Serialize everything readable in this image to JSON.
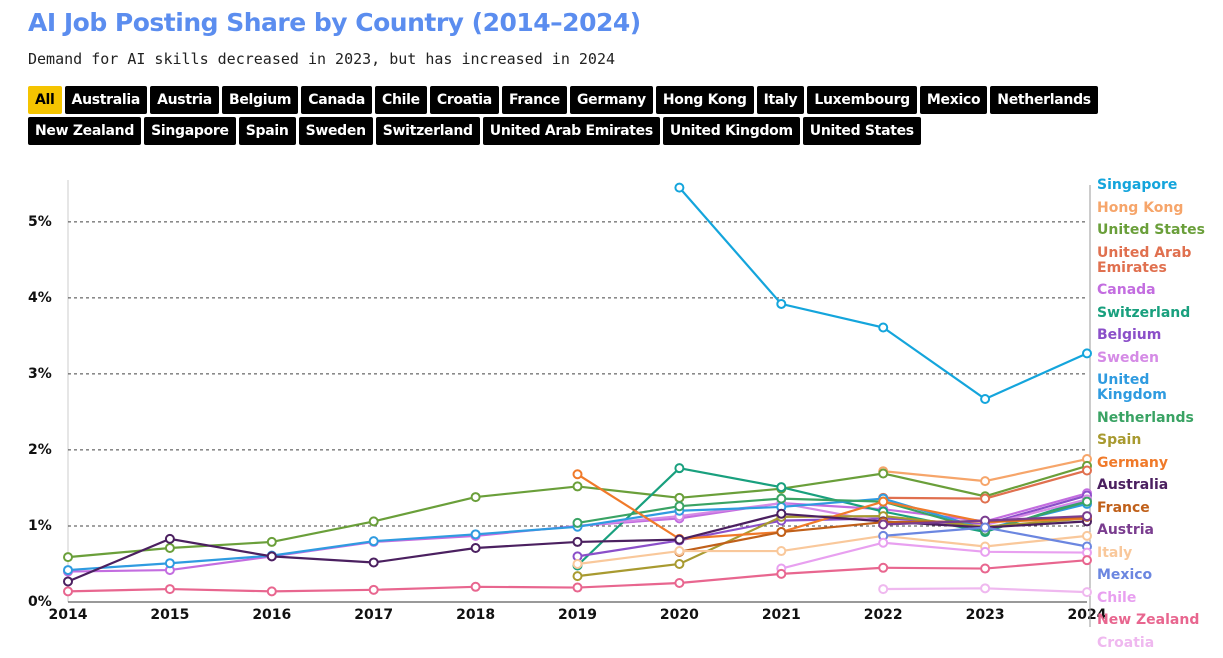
{
  "filters": [
    "All",
    "Australia",
    "Austria",
    "Belgium",
    "Canada",
    "Chile",
    "Croatia",
    "France",
    "Germany",
    "Hong Kong",
    "Italy",
    "Luxembourg",
    "Mexico",
    "Netherlands",
    "New Zealand",
    "Singapore",
    "Spain",
    "Sweden",
    "Switzerland",
    "United Arab Emirates",
    "United Kingdom",
    "United States"
  ],
  "chart_data": {
    "type": "line",
    "title": "AI Job Posting Share by Country (2014–2024)",
    "subtitle": "Demand for AI skills decreased in 2023, but has increased in 2024",
    "x": [
      2014,
      2015,
      2016,
      2017,
      2018,
      2019,
      2020,
      2021,
      2022,
      2023,
      2024
    ],
    "xlim": [
      2014,
      2024
    ],
    "xticks": [
      2014,
      2015,
      2016,
      2017,
      2018,
      2019,
      2020,
      2021,
      2022,
      2023,
      2024
    ],
    "ylim": [
      0,
      5.55
    ],
    "yticks": [
      {
        "value": 0,
        "label": "0%"
      },
      {
        "value": 1,
        "label": "1%"
      },
      {
        "value": 2,
        "label": "2%"
      },
      {
        "value": 3,
        "label": "3%"
      },
      {
        "value": 4,
        "label": "4%"
      },
      {
        "value": 5,
        "label": "5%"
      }
    ],
    "grid": true,
    "series": [
      {
        "name": "Singapore",
        "color": "#14a5dc",
        "values": [
          null,
          null,
          null,
          null,
          null,
          null,
          5.45,
          3.92,
          3.61,
          2.67,
          3.27
        ]
      },
      {
        "name": "Hong Kong",
        "color": "#f6a56a",
        "values": [
          null,
          null,
          null,
          null,
          null,
          null,
          null,
          null,
          1.72,
          1.59,
          1.88
        ]
      },
      {
        "name": "United States",
        "color": "#6a9f3a",
        "values": [
          0.59,
          0.71,
          0.79,
          1.06,
          1.38,
          1.52,
          1.37,
          1.49,
          1.69,
          1.39,
          1.79
        ]
      },
      {
        "name": "United Arab Emirates",
        "color": "#e0704f",
        "values": [
          null,
          null,
          null,
          null,
          null,
          null,
          null,
          null,
          1.37,
          1.36,
          1.73
        ]
      },
      {
        "name": "Canada",
        "color": "#c36de0",
        "values": [
          0.4,
          0.42,
          0.6,
          0.79,
          0.87,
          1.0,
          1.1,
          1.3,
          1.22,
          1.06,
          1.43
        ]
      },
      {
        "name": "Switzerland",
        "color": "#19a07e",
        "values": [
          null,
          null,
          null,
          null,
          null,
          0.48,
          1.76,
          1.51,
          1.19,
          0.92,
          1.35
        ]
      },
      {
        "name": "Belgium",
        "color": "#8b4fc9",
        "values": [
          null,
          null,
          null,
          null,
          null,
          0.6,
          0.81,
          1.07,
          1.1,
          1.02,
          1.4
        ]
      },
      {
        "name": "Sweden",
        "color": "#d58be6",
        "values": [
          null,
          null,
          null,
          null,
          null,
          1.0,
          1.13,
          1.3,
          1.05,
          1.01,
          1.35
        ]
      },
      {
        "name": "United Kingdom",
        "color": "#2f9be0",
        "values": [
          0.42,
          0.51,
          0.61,
          0.8,
          0.89,
          0.99,
          1.2,
          1.25,
          1.36,
          0.96,
          1.29
        ]
      },
      {
        "name": "Netherlands",
        "color": "#3aa364",
        "values": [
          null,
          null,
          null,
          null,
          null,
          1.04,
          1.26,
          1.36,
          1.32,
          0.94,
          1.32
        ]
      },
      {
        "name": "Spain",
        "color": "#a89a30",
        "values": [
          null,
          null,
          null,
          null,
          null,
          0.34,
          0.5,
          1.12,
          1.13,
          0.99,
          1.1
        ]
      },
      {
        "name": "Germany",
        "color": "#f07a2a",
        "values": [
          null,
          null,
          null,
          null,
          null,
          1.68,
          0.83,
          0.92,
          1.32,
          1.05,
          1.1
        ]
      },
      {
        "name": "Australia",
        "color": "#4b2060",
        "values": [
          0.27,
          0.83,
          0.6,
          0.52,
          0.71,
          0.79,
          0.82,
          1.16,
          1.06,
          0.98,
          1.06
        ]
      },
      {
        "name": "France",
        "color": "#c0601a",
        "values": [
          null,
          null,
          null,
          null,
          null,
          null,
          0.66,
          0.92,
          1.05,
          1.06,
          1.12
        ]
      },
      {
        "name": "Austria",
        "color": "#7a3d8f",
        "values": [
          null,
          null,
          null,
          null,
          null,
          null,
          null,
          null,
          1.02,
          1.07,
          1.13
        ]
      },
      {
        "name": "Italy",
        "color": "#f9c89b",
        "values": [
          null,
          null,
          null,
          null,
          null,
          0.5,
          0.67,
          0.67,
          0.87,
          0.73,
          0.87
        ]
      },
      {
        "name": "Mexico",
        "color": "#6b86e0",
        "values": [
          null,
          null,
          null,
          null,
          null,
          null,
          null,
          null,
          0.87,
          0.98,
          0.73
        ]
      },
      {
        "name": "Chile",
        "color": "#e8a0f0",
        "values": [
          null,
          null,
          null,
          null,
          null,
          null,
          null,
          0.44,
          0.78,
          0.66,
          0.65
        ]
      },
      {
        "name": "New Zealand",
        "color": "#e8668f",
        "values": [
          0.14,
          0.17,
          0.14,
          0.16,
          0.2,
          0.19,
          0.25,
          0.37,
          0.45,
          0.44,
          0.55
        ]
      },
      {
        "name": "Croatia",
        "color": "#efb8ef",
        "values": [
          null,
          null,
          null,
          null,
          null,
          null,
          null,
          null,
          0.17,
          0.18,
          0.13
        ]
      }
    ]
  }
}
